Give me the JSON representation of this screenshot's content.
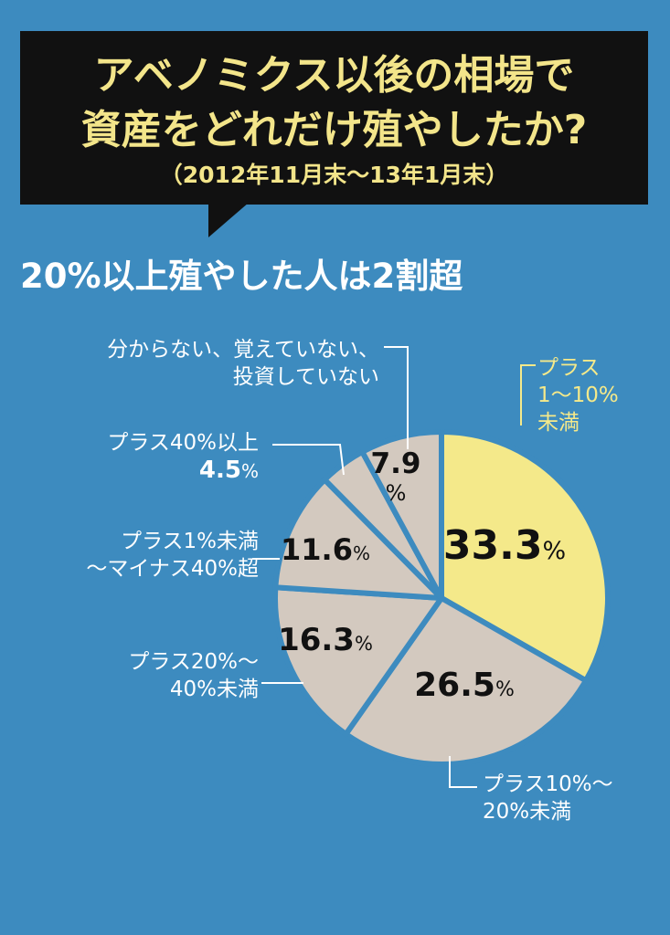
{
  "title": {
    "line1": "アベノミクス以後の相場で",
    "line2": "資産をどれだけ殖やしたか?",
    "period": "（2012年11月末〜13年1月末）"
  },
  "headline": "20%以上殖やした人は2割超",
  "chart_data": {
    "type": "pie",
    "start": "12 o'clock, clockwise",
    "slices": [
      {
        "label_lines": [
          "プラス",
          "1〜10%",
          "未満"
        ],
        "value": 33.3,
        "value_text": "33.3",
        "unit": "%",
        "color": "#f4e98a"
      },
      {
        "label_lines": [
          "プラス10%〜",
          "20%未満"
        ],
        "value": 26.5,
        "value_text": "26.5",
        "unit": "%",
        "color": "#d3c9bf"
      },
      {
        "label_lines": [
          "プラス20%〜",
          "40%未満"
        ],
        "value": 16.3,
        "value_text": "16.3",
        "unit": "%",
        "color": "#d3c9bf"
      },
      {
        "label_lines": [
          "プラス1%未満",
          "〜マイナス40%超"
        ],
        "value": 11.6,
        "value_text": "11.6",
        "unit": "%",
        "color": "#d3c9bf"
      },
      {
        "label_lines": [
          "プラス40%以上"
        ],
        "value": 4.5,
        "value_text": "4.5",
        "unit": "%",
        "color": "#d3c9bf"
      },
      {
        "label_lines": [
          "分からない、覚えていない、",
          "投資していない"
        ],
        "value": 7.9,
        "value_text": "7.9",
        "unit": "%",
        "color": "#d3c9bf"
      }
    ],
    "separator_color": "#3d8bbf",
    "label_text_color": "#ffffff",
    "highlight_label_color": "#f5e98a"
  }
}
